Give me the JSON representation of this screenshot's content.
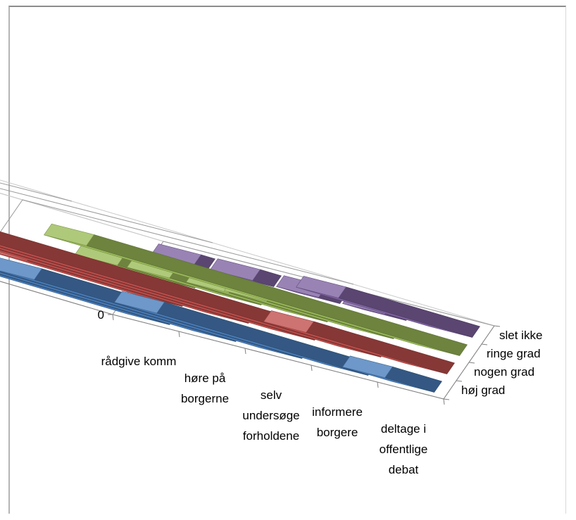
{
  "chart_data": {
    "type": "bar",
    "subtype": "3d-column",
    "title": "",
    "xlabel": "",
    "ylabel": "",
    "ylim": [
      0,
      100
    ],
    "y_ticks": [
      "0",
      "20",
      "40",
      "60",
      "80",
      "100"
    ],
    "grid": true,
    "legend": "none",
    "categories": [
      [
        "rådgive komm"
      ],
      [
        "høre på",
        "borgerne"
      ],
      [
        "selv",
        "undersøge",
        "forholdene"
      ],
      [
        "informere",
        "borgere"
      ],
      [
        "deltage i",
        "offentlige",
        "debat"
      ]
    ],
    "series": [
      {
        "name": "høj grad",
        "color": "#4a7ebb",
        "values": [
          82,
          40,
          38,
          30,
          7
        ]
      },
      {
        "name": "nogen grad",
        "color": "#c0504d",
        "values": [
          22,
          52,
          55,
          60,
          20
        ]
      },
      {
        "name": "ringe grad",
        "color": "#9bbb59",
        "values": [
          11,
          13,
          14,
          18,
          53
        ]
      },
      {
        "name": "slet ikke",
        "color": "#8064a2",
        "values": [
          2,
          3,
          3,
          3,
          19
        ]
      }
    ]
  }
}
